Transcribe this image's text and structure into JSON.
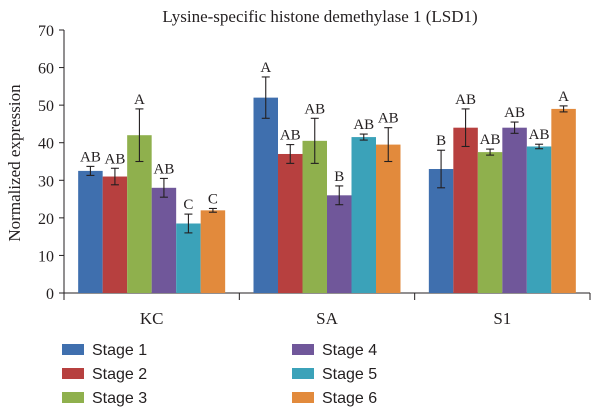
{
  "chart_data": {
    "type": "bar",
    "title": "Lysine-specific histone demethylase 1 (LSD1)",
    "xlabel": "",
    "ylabel": "Normalized expression",
    "ylim": [
      0,
      70
    ],
    "yticks": [
      "0",
      "10",
      "20",
      "30",
      "40",
      "50",
      "60",
      "70"
    ],
    "categories": [
      "KC",
      "SA",
      "S1"
    ],
    "series": [
      {
        "name": "Stage 1",
        "color": "#3f6fae",
        "values": [
          32.5,
          52,
          33
        ],
        "errors": [
          1.2,
          5.5,
          5
        ],
        "labels": [
          "AB",
          "A",
          "B"
        ]
      },
      {
        "name": "Stage 2",
        "color": "#b7403f",
        "values": [
          31,
          37,
          44
        ],
        "errors": [
          2.2,
          2.5,
          5
        ],
        "labels": [
          "AB",
          "AB",
          "AB"
        ]
      },
      {
        "name": "Stage 3",
        "color": "#8fb04d",
        "values": [
          42,
          40.5,
          37.5
        ],
        "errors": [
          7,
          6,
          0.8
        ],
        "labels": [
          "A",
          "AB",
          "AB"
        ]
      },
      {
        "name": "Stage 4",
        "color": "#70579a",
        "values": [
          28,
          26,
          44
        ],
        "errors": [
          2.5,
          2.5,
          1.5
        ],
        "labels": [
          "AB",
          "B",
          "AB"
        ]
      },
      {
        "name": "Stage 5",
        "color": "#3ba2b9",
        "values": [
          18.5,
          41.5,
          39
        ],
        "errors": [
          2.5,
          0.8,
          0.6
        ],
        "labels": [
          "C",
          "AB",
          "AB"
        ]
      },
      {
        "name": "Stage 6",
        "color": "#e28a3c",
        "values": [
          22,
          39.5,
          49
        ],
        "errors": [
          0.5,
          4.5,
          0.8
        ],
        "labels": [
          "C",
          "AB",
          "A"
        ]
      }
    ],
    "legend": "bottom",
    "grid": false
  }
}
